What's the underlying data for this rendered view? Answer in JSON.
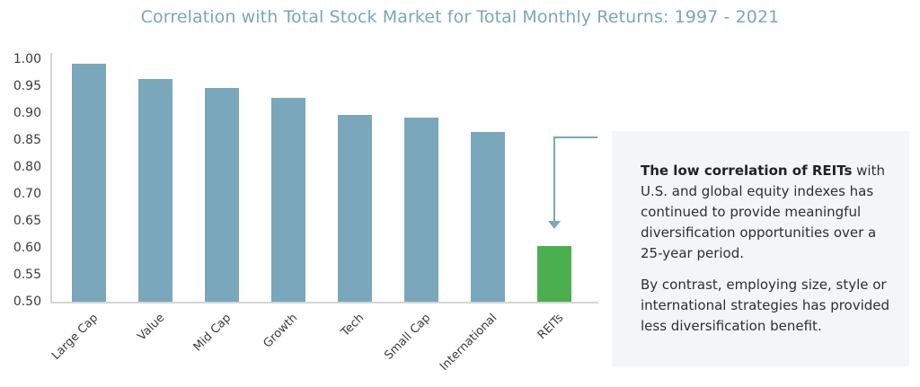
{
  "chart_data": {
    "type": "bar",
    "title": "Correlation with Total Stock Market for Total Monthly Returns: 1997 - 2021",
    "xlabel": "",
    "ylabel": "",
    "categories": [
      "Large Cap",
      "Value",
      "Mid Cap",
      "Growth",
      "Tech",
      "Small Cap",
      "International",
      "REITs"
    ],
    "values": [
      0.99,
      0.96,
      0.94,
      0.92,
      0.885,
      0.88,
      0.85,
      0.615
    ],
    "colors": [
      "#7aa7bb",
      "#7aa7bb",
      "#7aa7bb",
      "#7aa7bb",
      "#7aa7bb",
      "#7aa7bb",
      "#7aa7bb",
      "#4caf4f"
    ],
    "ylim": [
      0.5,
      1.0
    ],
    "yticks": [
      "1.00",
      "0.95",
      "0.90",
      "0.85",
      "0.80",
      "0.70",
      "0.65",
      "0.60",
      "0.55",
      "0.50"
    ],
    "grid": false,
    "legend": null,
    "annotation": "Arrow pointing down to REITs bar"
  },
  "colors": {
    "bar": "#7aa7bb",
    "highlight": "#4caf4f",
    "title": "#7aa7bb",
    "panel_bg": "#f4f5f7"
  },
  "panel": {
    "bold_lead": "The low correlation of REITs",
    "para1_rest": " with U.S. and global equity indexes has continued to provide meaningful diversification opportunities over a 25-year period.",
    "para2": "By contrast, employing size, style or international strategies has provided less diversification benefit."
  }
}
